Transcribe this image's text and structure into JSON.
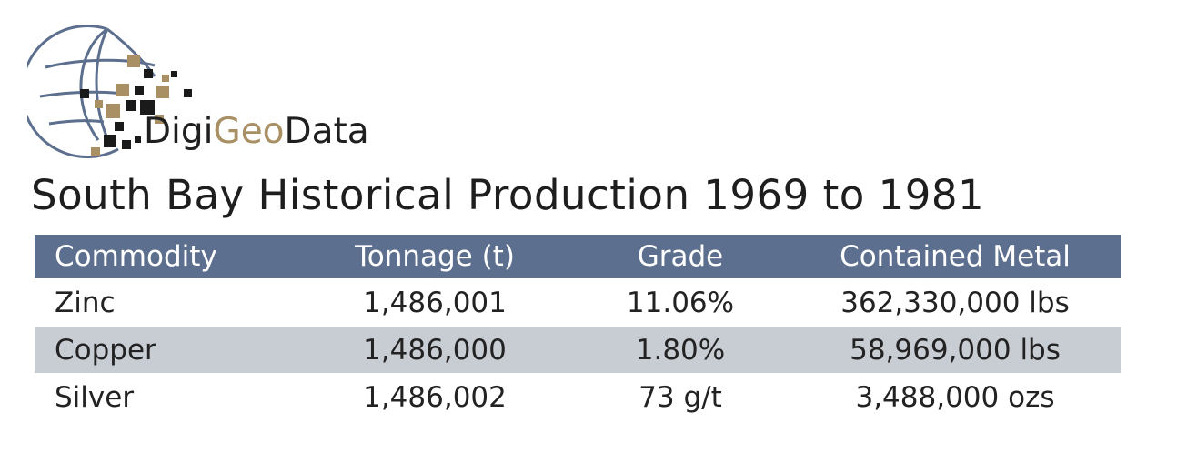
{
  "logo": {
    "text_part1": "Digi",
    "text_part2": "Geo",
    "text_part3": "Data",
    "colors": {
      "globe": "#5c6f8e",
      "accent": "#a89064",
      "dark": "#1a1a1a"
    }
  },
  "title": "South Bay Historical Production 1969 to 1981",
  "table": {
    "header_color": "#5c6f8e",
    "stripe_color": "#c8ccd3",
    "columns": [
      "Commodity",
      "Tonnage (t)",
      "Grade",
      "Contained Metal"
    ],
    "rows": [
      [
        "Zinc",
        "1,486,001",
        "11.06%",
        "362,330,000 lbs"
      ],
      [
        "Copper",
        "1,486,000",
        "1.80%",
        "58,969,000 lbs"
      ],
      [
        "Silver",
        "1,486,002",
        "73 g/t",
        "3,488,000 ozs"
      ]
    ]
  }
}
